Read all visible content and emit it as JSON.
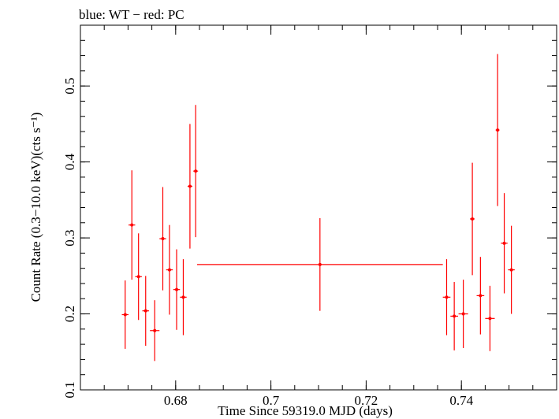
{
  "chart_data": {
    "type": "scatter",
    "title": "blue: WT − red: PC",
    "xlabel": "Time Since 59319.0 MJD (days)",
    "ylabel": "Count Rate (0.3−10.0 keV)(cts s⁻¹)",
    "xlim": [
      0.66,
      0.76
    ],
    "ylim": [
      0.1,
      0.58
    ],
    "xticks": [
      0.68,
      0.7,
      0.72,
      0.74
    ],
    "xtick_labels": [
      "0.68",
      "0.7",
      "0.72",
      "0.74"
    ],
    "yticks": [
      0.1,
      0.2,
      0.3,
      0.4,
      0.5
    ],
    "ytick_labels": [
      "0.1",
      "0.2",
      "0.3",
      "0.4",
      "0.5"
    ],
    "series": [
      {
        "name": "PC",
        "color": "#ff0000",
        "points": [
          {
            "x": 0.6694,
            "xerr": 0.0007,
            "y": 0.199,
            "yerr": 0.045
          },
          {
            "x": 0.6708,
            "xerr": 0.0007,
            "y": 0.317,
            "yerr": 0.072
          },
          {
            "x": 0.6722,
            "xerr": 0.0007,
            "y": 0.249,
            "yerr": 0.057
          },
          {
            "x": 0.6737,
            "xerr": 0.0007,
            "y": 0.204,
            "yerr": 0.046
          },
          {
            "x": 0.6756,
            "xerr": 0.001,
            "y": 0.178,
            "yerr": 0.04
          },
          {
            "x": 0.6773,
            "xerr": 0.0007,
            "y": 0.299,
            "yerr": 0.068
          },
          {
            "x": 0.6787,
            "xerr": 0.0007,
            "y": 0.258,
            "yerr": 0.059
          },
          {
            "x": 0.6802,
            "xerr": 0.0007,
            "y": 0.232,
            "yerr": 0.053
          },
          {
            "x": 0.6816,
            "xerr": 0.0007,
            "y": 0.222,
            "yerr": 0.05
          },
          {
            "x": 0.683,
            "xerr": 0.0005,
            "y": 0.368,
            "yerr": 0.082
          },
          {
            "x": 0.6842,
            "xerr": 0.0005,
            "y": 0.388,
            "yerr": 0.087
          },
          {
            "x": 0.7103,
            "xerr": 0.0258,
            "y": 0.265,
            "yerr": 0.061
          },
          {
            "x": 0.7369,
            "xerr": 0.0008,
            "y": 0.222,
            "yerr": 0.05
          },
          {
            "x": 0.7385,
            "xerr": 0.0008,
            "y": 0.197,
            "yerr": 0.045
          },
          {
            "x": 0.7404,
            "xerr": 0.001,
            "y": 0.2,
            "yerr": 0.045
          },
          {
            "x": 0.7423,
            "xerr": 0.0005,
            "y": 0.325,
            "yerr": 0.074
          },
          {
            "x": 0.744,
            "xerr": 0.0008,
            "y": 0.224,
            "yerr": 0.051
          },
          {
            "x": 0.746,
            "xerr": 0.001,
            "y": 0.194,
            "yerr": 0.043
          },
          {
            "x": 0.7476,
            "xerr": 0.0004,
            "y": 0.442,
            "yerr": 0.1
          },
          {
            "x": 0.749,
            "xerr": 0.0007,
            "y": 0.293,
            "yerr": 0.066
          },
          {
            "x": 0.7505,
            "xerr": 0.0007,
            "y": 0.258,
            "yerr": 0.058
          }
        ]
      }
    ]
  }
}
